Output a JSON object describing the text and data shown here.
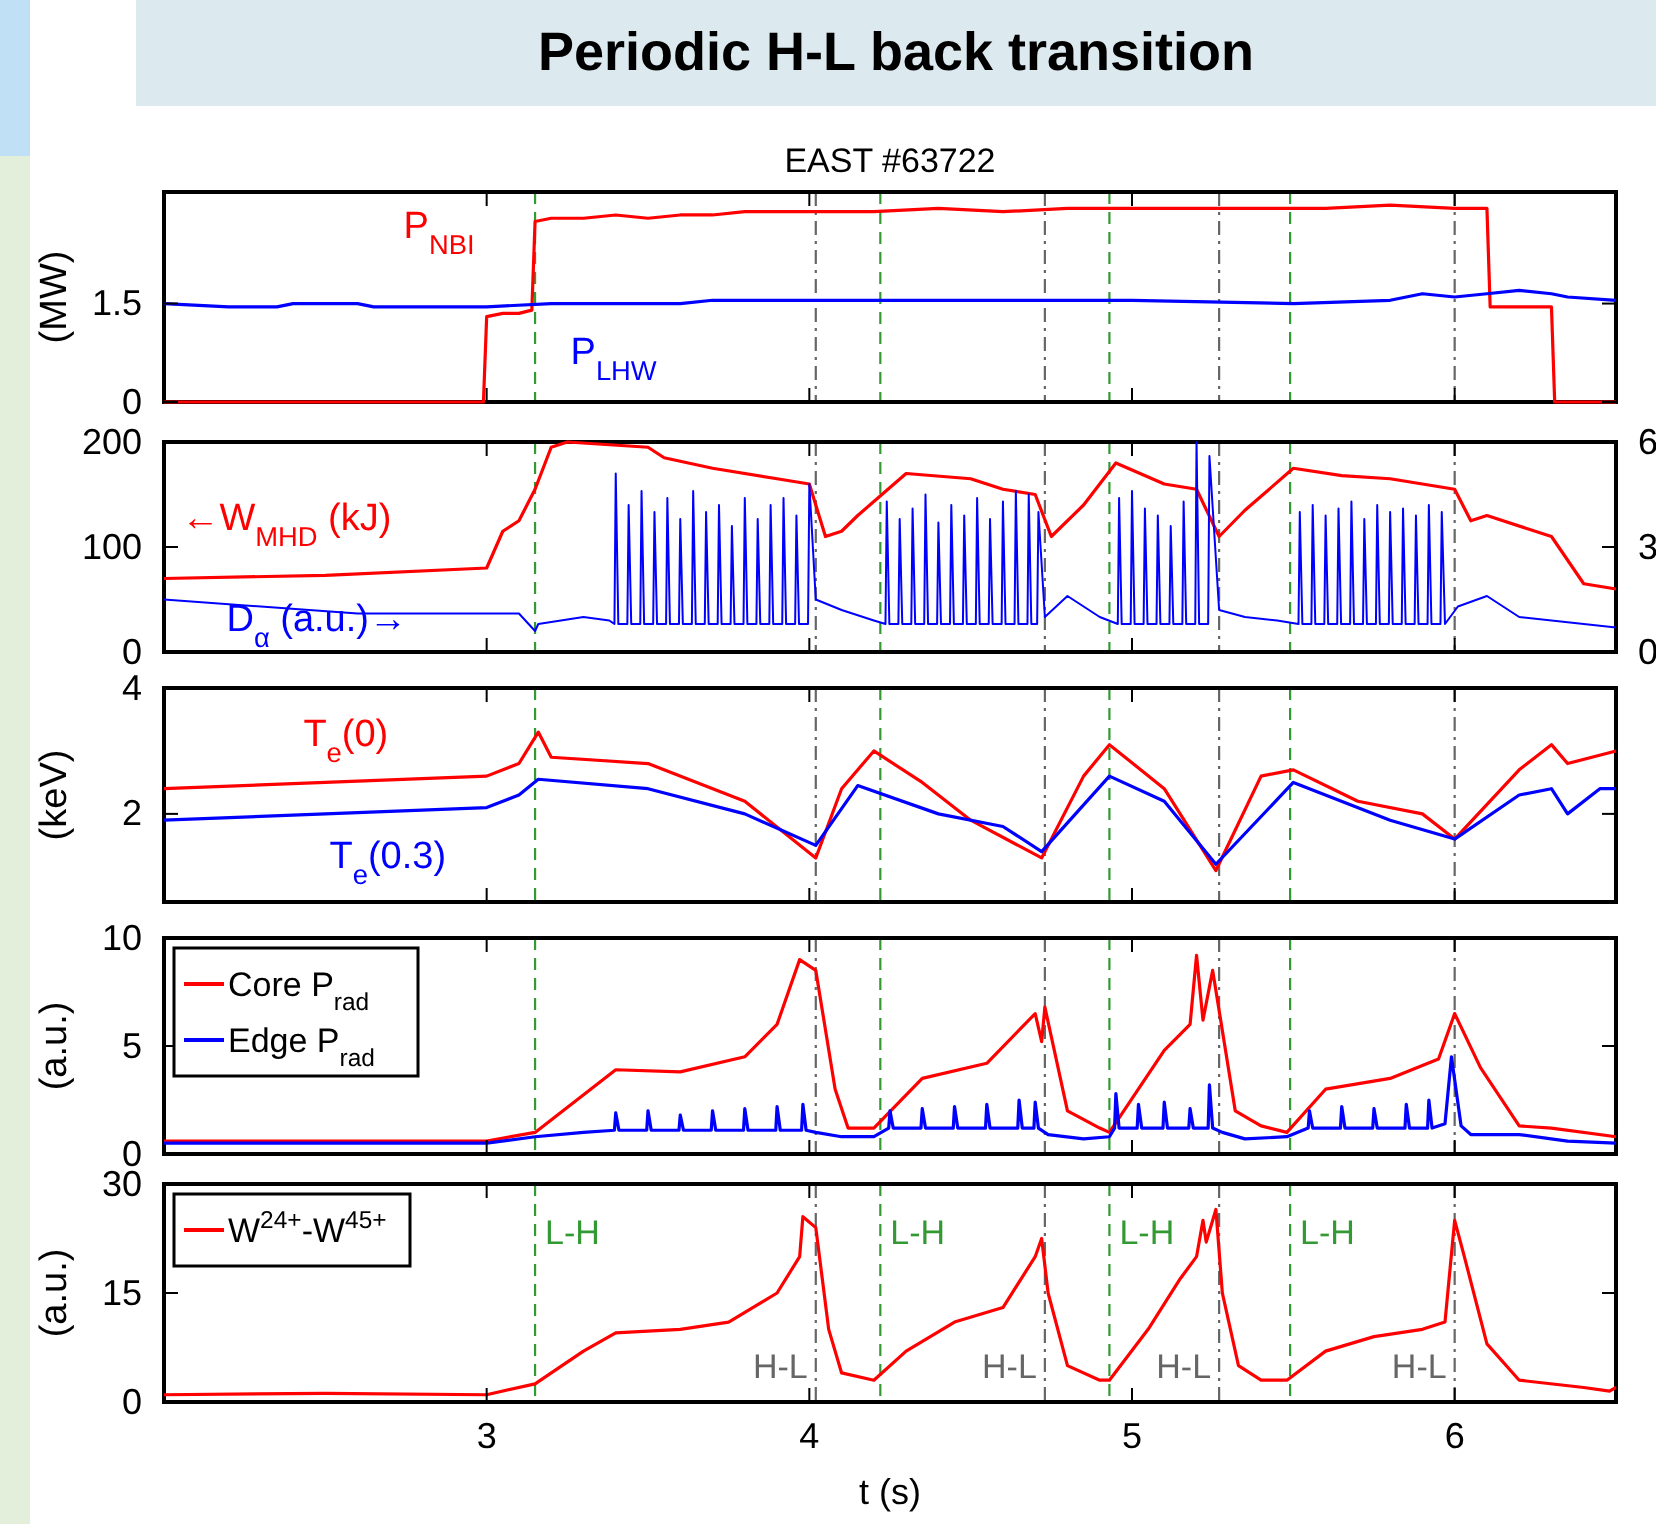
{
  "chart_data": [
    {
      "type": "line",
      "title": "Periodic H-L back transition",
      "subtitle": "EAST #63722",
      "ylabel": "(MW)",
      "xlim": [
        2.0,
        6.5
      ],
      "xticks": [
        3,
        4,
        5,
        6
      ],
      "ylim": [
        0,
        3.2
      ],
      "yticks": [
        0,
        1.5
      ],
      "tick_labels": "y",
      "ref_lines": [
        {
          "axis": "x",
          "value": 3.15,
          "color": "#339933",
          "line_style": "dashed"
        },
        {
          "axis": "x",
          "value": 4.02,
          "color": "#666666",
          "line_style": "dashdot"
        },
        {
          "axis": "x",
          "value": 4.22,
          "color": "#339933",
          "line_style": "dashed"
        },
        {
          "axis": "x",
          "value": 4.73,
          "color": "#666666",
          "line_style": "dashdot"
        },
        {
          "axis": "x",
          "value": 4.93,
          "color": "#339933",
          "line_style": "dashed"
        },
        {
          "axis": "x",
          "value": 5.27,
          "color": "#666666",
          "line_style": "dashdot"
        },
        {
          "axis": "x",
          "value": 5.49,
          "color": "#339933",
          "line_style": "dashed"
        },
        {
          "axis": "x",
          "value": 6.0,
          "color": "#666666",
          "line_style": "dashdot"
        }
      ],
      "series": [
        {
          "name": "P$_{NBI}$",
          "color": "#ff0000",
          "x": [
            2.0,
            2.99,
            3.0,
            3.05,
            3.1,
            3.14,
            3.15,
            3.2,
            3.3,
            3.4,
            3.5,
            3.6,
            3.7,
            3.8,
            4.0,
            4.2,
            4.4,
            4.6,
            4.8,
            5.0,
            5.2,
            5.4,
            5.6,
            5.8,
            6.0,
            6.1,
            6.11,
            6.2,
            6.3,
            6.31,
            6.5
          ],
          "values": [
            0,
            0,
            1.3,
            1.35,
            1.35,
            1.4,
            2.75,
            2.8,
            2.8,
            2.85,
            2.8,
            2.85,
            2.85,
            2.9,
            2.9,
            2.9,
            2.95,
            2.9,
            2.95,
            2.95,
            2.95,
            2.95,
            2.95,
            3.0,
            2.95,
            2.95,
            1.45,
            1.45,
            1.45,
            0,
            0
          ]
        },
        {
          "name": "P$_{LHW}$",
          "color": "#0000ff",
          "x": [
            2.0,
            2.2,
            2.35,
            2.4,
            2.6,
            2.65,
            3.0,
            3.2,
            3.6,
            3.7,
            4.0,
            4.5,
            5.0,
            5.5,
            5.8,
            5.9,
            6.0,
            6.1,
            6.2,
            6.3,
            6.35,
            6.5
          ],
          "values": [
            1.5,
            1.45,
            1.45,
            1.5,
            1.5,
            1.45,
            1.45,
            1.5,
            1.5,
            1.55,
            1.55,
            1.55,
            1.55,
            1.5,
            1.55,
            1.65,
            1.6,
            1.65,
            1.7,
            1.65,
            1.6,
            1.55
          ]
        }
      ]
    },
    {
      "type": "line",
      "xlim": [
        2.0,
        6.5
      ],
      "xticks": [
        3,
        4,
        5,
        6
      ],
      "ylim": [
        0,
        200
      ],
      "yticks": [
        0,
        100,
        200
      ],
      "y2lim": [
        0,
        6
      ],
      "y2ticks": [
        0,
        3,
        6
      ],
      "tick_labels": "y",
      "ref_lines": [
        {
          "axis": "x",
          "value": 3.15,
          "color": "#339933",
          "line_style": "dashed"
        },
        {
          "axis": "x",
          "value": 4.02,
          "color": "#666666",
          "line_style": "dashdot"
        },
        {
          "axis": "x",
          "value": 4.22,
          "color": "#339933",
          "line_style": "dashed"
        },
        {
          "axis": "x",
          "value": 4.73,
          "color": "#666666",
          "line_style": "dashdot"
        },
        {
          "axis": "x",
          "value": 4.93,
          "color": "#339933",
          "line_style": "dashed"
        },
        {
          "axis": "x",
          "value": 5.27,
          "color": "#666666",
          "line_style": "dashdot"
        },
        {
          "axis": "x",
          "value": 5.49,
          "color": "#339933",
          "line_style": "dashed"
        },
        {
          "axis": "x",
          "value": 6.0,
          "color": "#666666",
          "line_style": "dashdot"
        }
      ],
      "series": [
        {
          "name": "←W$_{MHD}$ (kJ)",
          "color": "#ff0000",
          "x": [
            2.0,
            2.5,
            3.0,
            3.05,
            3.1,
            3.15,
            3.2,
            3.25,
            3.5,
            3.55,
            3.7,
            3.9,
            4.0,
            4.05,
            4.1,
            4.15,
            4.3,
            4.5,
            4.6,
            4.7,
            4.75,
            4.85,
            4.95,
            5.1,
            5.2,
            5.27,
            5.35,
            5.5,
            5.65,
            5.8,
            6.0,
            6.05,
            6.1,
            6.3,
            6.4,
            6.5
          ],
          "values": [
            70,
            73,
            80,
            115,
            125,
            155,
            195,
            200,
            195,
            185,
            175,
            165,
            160,
            110,
            115,
            130,
            170,
            165,
            155,
            150,
            110,
            140,
            180,
            160,
            155,
            110,
            135,
            175,
            168,
            165,
            155,
            125,
            130,
            110,
            65,
            60
          ]
        },
        {
          "name": "D$_{α}$ (a.u.)→",
          "axis": "y2",
          "color": "#0000ff",
          "x": [
            2.0,
            2.3,
            2.6,
            2.9,
            3.1,
            3.15,
            3.16,
            3.3,
            3.38,
            3.396,
            3.4,
            3.408,
            3.436,
            3.44,
            3.448,
            3.476,
            3.48,
            3.488,
            3.516,
            3.52,
            3.528,
            3.556,
            3.56,
            3.568,
            3.596,
            3.6,
            3.608,
            3.636,
            3.64,
            3.648,
            3.676,
            3.68,
            3.688,
            3.716,
            3.72,
            3.728,
            3.756,
            3.76,
            3.768,
            3.796,
            3.8,
            3.808,
            3.836,
            3.84,
            3.848,
            3.876,
            3.88,
            3.888,
            3.916,
            3.92,
            3.928,
            3.956,
            3.96,
            3.968,
            3.996,
            4.0,
            4.02,
            4.1,
            4.2,
            4.236,
            4.24,
            4.248,
            4.276,
            4.28,
            4.288,
            4.316,
            4.32,
            4.328,
            4.356,
            4.36,
            4.368,
            4.396,
            4.4,
            4.408,
            4.436,
            4.44,
            4.448,
            4.476,
            4.48,
            4.488,
            4.516,
            4.52,
            4.528,
            4.556,
            4.56,
            4.568,
            4.596,
            4.6,
            4.608,
            4.636,
            4.64,
            4.648,
            4.676,
            4.68,
            4.688,
            4.706,
            4.71,
            4.73,
            4.8,
            4.9,
            4.956,
            4.96,
            4.968,
            4.996,
            5.0,
            5.008,
            5.036,
            5.04,
            5.048,
            5.076,
            5.08,
            5.088,
            5.116,
            5.12,
            5.128,
            5.156,
            5.16,
            5.168,
            5.196,
            5.2,
            5.208,
            5.236,
            5.24,
            5.27,
            5.35,
            5.45,
            5.516,
            5.52,
            5.528,
            5.556,
            5.56,
            5.568,
            5.596,
            5.6,
            5.608,
            5.636,
            5.64,
            5.648,
            5.676,
            5.68,
            5.688,
            5.716,
            5.72,
            5.728,
            5.756,
            5.76,
            5.768,
            5.796,
            5.8,
            5.808,
            5.836,
            5.84,
            5.848,
            5.876,
            5.88,
            5.888,
            5.916,
            5.92,
            5.928,
            5.956,
            5.96,
            5.97,
            6.01,
            6.1,
            6.2,
            6.4,
            6.5
          ],
          "values": [
            1.5,
            1.3,
            1.1,
            1.1,
            1.1,
            0.6,
            0.8,
            1.0,
            0.9,
            0.8,
            5.1,
            0.8,
            0.8,
            4.2,
            0.8,
            0.8,
            4.6,
            0.8,
            0.8,
            4.0,
            0.8,
            0.8,
            4.4,
            0.8,
            0.8,
            3.8,
            0.8,
            0.8,
            4.6,
            0.8,
            0.8,
            4.0,
            0.8,
            0.8,
            4.2,
            0.8,
            0.8,
            3.6,
            0.8,
            0.8,
            4.4,
            0.8,
            0.8,
            3.8,
            0.8,
            0.8,
            4.2,
            0.8,
            0.8,
            4.4,
            0.8,
            0.8,
            3.9,
            0.8,
            0.8,
            4.8,
            1.5,
            1.2,
            0.9,
            0.8,
            4.3,
            0.8,
            0.8,
            3.8,
            0.8,
            0.8,
            4.1,
            0.8,
            0.8,
            4.5,
            0.8,
            0.8,
            3.7,
            0.8,
            0.8,
            4.2,
            0.8,
            0.8,
            3.9,
            0.8,
            0.8,
            4.4,
            0.8,
            0.8,
            3.8,
            0.8,
            0.8,
            4.3,
            0.8,
            0.8,
            4.6,
            0.8,
            0.8,
            4.5,
            0.8,
            0.8,
            4.0,
            1.0,
            1.6,
            1.0,
            0.8,
            4.4,
            0.8,
            0.8,
            4.6,
            0.8,
            0.8,
            4.1,
            0.8,
            0.8,
            3.9,
            0.8,
            0.8,
            3.6,
            0.8,
            0.8,
            4.3,
            0.8,
            0.8,
            6.0,
            0.8,
            0.8,
            5.6,
            1.2,
            1.0,
            0.9,
            0.8,
            4.0,
            0.8,
            0.8,
            4.2,
            0.8,
            0.8,
            3.9,
            0.8,
            0.8,
            4.1,
            0.8,
            0.8,
            4.3,
            0.8,
            0.8,
            3.8,
            0.8,
            0.8,
            4.2,
            0.8,
            0.8,
            4.0,
            0.8,
            0.8,
            4.1,
            0.8,
            0.8,
            3.9,
            0.8,
            0.8,
            4.2,
            0.8,
            0.8,
            4.0,
            0.8,
            1.3,
            1.6,
            1.0,
            0.8,
            0.7
          ]
        }
      ]
    },
    {
      "type": "line",
      "ylabel": "(keV)",
      "xlim": [
        2.0,
        6.5
      ],
      "xticks": [
        3,
        4,
        5,
        6
      ],
      "ylim": [
        0.6,
        4
      ],
      "yticks": [
        2,
        4
      ],
      "tick_labels": "y",
      "ref_lines": [
        {
          "axis": "x",
          "value": 3.15,
          "color": "#339933",
          "line_style": "dashed"
        },
        {
          "axis": "x",
          "value": 4.02,
          "color": "#666666",
          "line_style": "dashdot"
        },
        {
          "axis": "x",
          "value": 4.22,
          "color": "#339933",
          "line_style": "dashed"
        },
        {
          "axis": "x",
          "value": 4.73,
          "color": "#666666",
          "line_style": "dashdot"
        },
        {
          "axis": "x",
          "value": 4.93,
          "color": "#339933",
          "line_style": "dashed"
        },
        {
          "axis": "x",
          "value": 5.27,
          "color": "#666666",
          "line_style": "dashdot"
        },
        {
          "axis": "x",
          "value": 5.49,
          "color": "#339933",
          "line_style": "dashed"
        },
        {
          "axis": "x",
          "value": 6.0,
          "color": "#666666",
          "line_style": "dashdot"
        }
      ],
      "series": [
        {
          "name": "T$_{e}$(0)",
          "color": "#ff0000",
          "x": [
            2.0,
            2.5,
            3.0,
            3.1,
            3.16,
            3.2,
            3.5,
            3.8,
            4.02,
            4.1,
            4.2,
            4.35,
            4.5,
            4.72,
            4.85,
            4.93,
            5.1,
            5.26,
            5.4,
            5.5,
            5.7,
            5.9,
            6.0,
            6.2,
            6.3,
            6.35,
            6.5
          ],
          "values": [
            2.4,
            2.5,
            2.6,
            2.8,
            3.3,
            2.9,
            2.8,
            2.2,
            1.3,
            2.4,
            3.0,
            2.5,
            1.9,
            1.3,
            2.6,
            3.1,
            2.4,
            1.1,
            2.6,
            2.7,
            2.2,
            2.0,
            1.6,
            2.7,
            3.1,
            2.8,
            3.0
          ]
        },
        {
          "name": "T$_{e}$(0.3)",
          "color": "#0000ff",
          "x": [
            2.0,
            2.5,
            3.0,
            3.1,
            3.16,
            3.5,
            3.8,
            4.02,
            4.15,
            4.4,
            4.6,
            4.72,
            4.93,
            5.1,
            5.26,
            5.5,
            5.8,
            6.0,
            6.2,
            6.3,
            6.35,
            6.45,
            6.5
          ],
          "values": [
            1.9,
            2.0,
            2.1,
            2.3,
            2.55,
            2.4,
            2.0,
            1.5,
            2.45,
            2.0,
            1.8,
            1.4,
            2.6,
            2.2,
            1.2,
            2.5,
            1.9,
            1.6,
            2.3,
            2.4,
            2.0,
            2.4,
            2.4
          ]
        }
      ]
    },
    {
      "type": "line",
      "ylabel": "(a.u.)",
      "xlim": [
        2.0,
        6.5
      ],
      "xticks": [
        3,
        4,
        5,
        6
      ],
      "ylim": [
        0,
        10
      ],
      "yticks": [
        0,
        5,
        10
      ],
      "tick_labels": "y",
      "legend": "top left",
      "ref_lines": [
        {
          "axis": "x",
          "value": 3.15,
          "color": "#339933",
          "line_style": "dashed"
        },
        {
          "axis": "x",
          "value": 4.02,
          "color": "#666666",
          "line_style": "dashdot"
        },
        {
          "axis": "x",
          "value": 4.22,
          "color": "#339933",
          "line_style": "dashed"
        },
        {
          "axis": "x",
          "value": 4.73,
          "color": "#666666",
          "line_style": "dashdot"
        },
        {
          "axis": "x",
          "value": 4.93,
          "color": "#339933",
          "line_style": "dashed"
        },
        {
          "axis": "x",
          "value": 5.27,
          "color": "#666666",
          "line_style": "dashdot"
        },
        {
          "axis": "x",
          "value": 5.49,
          "color": "#339933",
          "line_style": "dashed"
        },
        {
          "axis": "x",
          "value": 6.0,
          "color": "#666666",
          "line_style": "dashdot"
        }
      ],
      "series": [
        {
          "name": "Core P$_{rad}$",
          "color": "#ff0000",
          "x": [
            2.0,
            3.0,
            3.15,
            3.4,
            3.6,
            3.8,
            3.9,
            3.97,
            4.02,
            4.08,
            4.12,
            4.2,
            4.35,
            4.55,
            4.7,
            4.72,
            4.73,
            4.8,
            4.9,
            4.93,
            5.1,
            5.18,
            5.2,
            5.22,
            5.25,
            5.32,
            5.4,
            5.48,
            5.6,
            5.8,
            5.95,
            6.0,
            6.08,
            6.2,
            6.3,
            6.5
          ],
          "values": [
            0.6,
            0.6,
            1.0,
            3.9,
            3.8,
            4.5,
            6.0,
            9.0,
            8.5,
            3.0,
            1.2,
            1.2,
            3.5,
            4.2,
            6.5,
            5.2,
            6.8,
            2.0,
            1.2,
            1.0,
            4.8,
            6.0,
            9.2,
            6.2,
            8.5,
            2.0,
            1.3,
            1.0,
            3.0,
            3.5,
            4.4,
            6.5,
            4.0,
            1.3,
            1.2,
            0.8
          ]
        },
        {
          "name": "Edge P$_{rad}$",
          "color": "#0000ff",
          "x": [
            2.0,
            3.0,
            3.15,
            3.3,
            3.396,
            3.4,
            3.41,
            3.496,
            3.5,
            3.51,
            3.596,
            3.6,
            3.61,
            3.696,
            3.7,
            3.71,
            3.796,
            3.8,
            3.81,
            3.896,
            3.9,
            3.91,
            3.976,
            3.98,
            3.99,
            4.02,
            4.1,
            4.2,
            4.246,
            4.25,
            4.26,
            4.346,
            4.35,
            4.36,
            4.446,
            4.45,
            4.46,
            4.546,
            4.55,
            4.56,
            4.646,
            4.65,
            4.66,
            4.696,
            4.7,
            4.71,
            4.74,
            4.85,
            4.93,
            4.946,
            4.95,
            4.96,
            5.016,
            5.02,
            5.03,
            5.096,
            5.1,
            5.11,
            5.176,
            5.18,
            5.19,
            5.236,
            5.24,
            5.25,
            5.28,
            5.35,
            5.48,
            5.546,
            5.55,
            5.56,
            5.646,
            5.65,
            5.66,
            5.746,
            5.75,
            5.76,
            5.846,
            5.85,
            5.86,
            5.916,
            5.92,
            5.93,
            5.97,
            5.99,
            6.02,
            6.05,
            6.2,
            6.35,
            6.5
          ],
          "values": [
            0.5,
            0.5,
            0.8,
            1.0,
            1.1,
            1.9,
            1.1,
            1.1,
            2.0,
            1.1,
            1.1,
            1.8,
            1.1,
            1.1,
            2.0,
            1.1,
            1.1,
            2.1,
            1.1,
            1.1,
            2.2,
            1.1,
            1.1,
            2.3,
            1.1,
            1.0,
            0.8,
            0.8,
            1.2,
            2.0,
            1.2,
            1.2,
            2.1,
            1.2,
            1.2,
            2.2,
            1.2,
            1.2,
            2.3,
            1.2,
            1.2,
            2.5,
            1.2,
            1.2,
            2.4,
            1.2,
            0.9,
            0.7,
            0.8,
            1.2,
            2.8,
            1.2,
            1.2,
            2.3,
            1.2,
            1.2,
            2.4,
            1.2,
            1.2,
            2.1,
            1.2,
            1.2,
            3.2,
            1.2,
            1.0,
            0.7,
            0.8,
            1.2,
            2.0,
            1.2,
            1.2,
            2.2,
            1.2,
            1.2,
            2.1,
            1.2,
            1.2,
            2.3,
            1.2,
            1.2,
            2.5,
            1.2,
            1.4,
            4.5,
            1.3,
            0.9,
            0.9,
            0.6,
            0.5
          ]
        }
      ]
    },
    {
      "type": "line",
      "xlabel": "t (s)",
      "ylabel": "(a.u.)",
      "xlim": [
        2.0,
        6.5
      ],
      "xticks": [
        3,
        4,
        5,
        6
      ],
      "ylim": [
        0,
        30
      ],
      "yticks": [
        0,
        15,
        30
      ],
      "legend": "top left",
      "ref_lines": [
        {
          "axis": "x",
          "value": 3.15,
          "label": "L-H",
          "color": "#339933",
          "line_style": "dashed"
        },
        {
          "axis": "x",
          "value": 4.02,
          "label": "H-L",
          "color": "#666666",
          "line_style": "dashdot"
        },
        {
          "axis": "x",
          "value": 4.22,
          "label": "L-H",
          "color": "#339933",
          "line_style": "dashed"
        },
        {
          "axis": "x",
          "value": 4.73,
          "label": "H-L",
          "color": "#666666",
          "line_style": "dashdot"
        },
        {
          "axis": "x",
          "value": 4.93,
          "label": "L-H",
          "color": "#339933",
          "line_style": "dashed"
        },
        {
          "axis": "x",
          "value": 5.27,
          "label": "H-L",
          "color": "#666666",
          "line_style": "dashdot"
        },
        {
          "axis": "x",
          "value": 5.49,
          "label": "L-H",
          "color": "#339933",
          "line_style": "dashed"
        },
        {
          "axis": "x",
          "value": 6.0,
          "label": "H-L",
          "color": "#666666",
          "line_style": "dashdot"
        }
      ],
      "series": [
        {
          "name": "W$^{24+}$-W$^{45+}$",
          "color": "#ff0000",
          "x": [
            2.0,
            2.5,
            3.0,
            3.15,
            3.3,
            3.4,
            3.6,
            3.75,
            3.9,
            3.97,
            3.98,
            4.02,
            4.06,
            4.1,
            4.2,
            4.3,
            4.45,
            4.6,
            4.7,
            4.72,
            4.74,
            4.8,
            4.9,
            4.93,
            5.05,
            5.15,
            5.2,
            5.22,
            5.23,
            5.26,
            5.28,
            5.33,
            5.4,
            5.48,
            5.6,
            5.75,
            5.9,
            5.97,
            6.0,
            6.03,
            6.1,
            6.2,
            6.4,
            6.48,
            6.5
          ],
          "values": [
            1,
            1.2,
            1,
            2.5,
            7,
            9.5,
            10,
            11,
            15,
            20,
            25.5,
            24,
            10,
            4,
            3,
            7,
            11,
            13,
            20,
            22.5,
            15,
            5,
            3,
            3,
            10,
            17,
            20,
            25,
            22,
            26.5,
            15,
            5,
            3,
            3,
            7,
            9,
            10,
            11,
            25,
            20,
            8,
            3,
            2,
            1.5,
            2
          ]
        }
      ]
    }
  ]
}
